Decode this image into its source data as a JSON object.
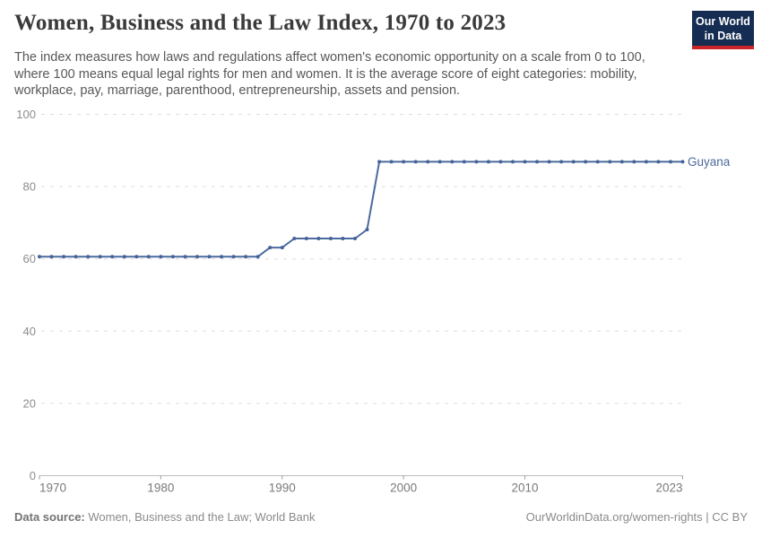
{
  "header": {
    "title": "Women, Business and the Law Index, 1970 to 2023",
    "logo": {
      "line1": "Our World",
      "line2": "in Data",
      "bg_color": "#152d52",
      "bar_color": "#cc2529"
    }
  },
  "subtitle": "The index measures how laws and regulations affect women's economic opportunity on a scale from 0 to 100, where 100 means equal legal rights for men and women. It is the average score of eight categories: mobility, workplace, pay, marriage, parenthood, entrepreneurship, assets and pension.",
  "chart_data": {
    "type": "line",
    "title": "Women, Business and the Law Index, 1970 to 2023",
    "xlabel": "",
    "ylabel": "",
    "xlim": [
      1970,
      2023
    ],
    "ylim": [
      0,
      100
    ],
    "x_ticks": [
      1970,
      1980,
      1990,
      2000,
      2010,
      2023
    ],
    "y_ticks": [
      0,
      20,
      40,
      60,
      80,
      100
    ],
    "grid": "horizontal-dashed",
    "legend_position": "end-of-line-label",
    "colors": {
      "line": "#4c6a9c",
      "point": "#44639a",
      "gridline": "#dedede",
      "axis": "#bdbdbd",
      "tick": "#9a9a9a",
      "axis_label": "#8c8c8c"
    },
    "series": [
      {
        "name": "Guyana",
        "color": "#4c6a9c",
        "x": [
          1970,
          1971,
          1972,
          1973,
          1974,
          1975,
          1976,
          1977,
          1978,
          1979,
          1980,
          1981,
          1982,
          1983,
          1984,
          1985,
          1986,
          1987,
          1988,
          1989,
          1990,
          1991,
          1992,
          1993,
          1994,
          1995,
          1996,
          1997,
          1998,
          1999,
          2000,
          2001,
          2002,
          2003,
          2004,
          2005,
          2006,
          2007,
          2008,
          2009,
          2010,
          2011,
          2012,
          2013,
          2014,
          2015,
          2016,
          2017,
          2018,
          2019,
          2020,
          2021,
          2022,
          2023
        ],
        "values": [
          60.625,
          60.625,
          60.625,
          60.625,
          60.625,
          60.625,
          60.625,
          60.625,
          60.625,
          60.625,
          60.625,
          60.625,
          60.625,
          60.625,
          60.625,
          60.625,
          60.625,
          60.625,
          60.625,
          63.125,
          63.125,
          65.625,
          65.625,
          65.625,
          65.625,
          65.625,
          65.625,
          68.125,
          86.875,
          86.875,
          86.875,
          86.875,
          86.875,
          86.875,
          86.875,
          86.875,
          86.875,
          86.875,
          86.875,
          86.875,
          86.875,
          86.875,
          86.875,
          86.875,
          86.875,
          86.875,
          86.875,
          86.875,
          86.875,
          86.875,
          86.875,
          86.875,
          86.875,
          86.875
        ]
      }
    ]
  },
  "footer": {
    "source_label": "Data source:",
    "source_value": " Women, Business and the Law; World Bank",
    "rights": "OurWorldinData.org/women-rights | CC BY"
  }
}
